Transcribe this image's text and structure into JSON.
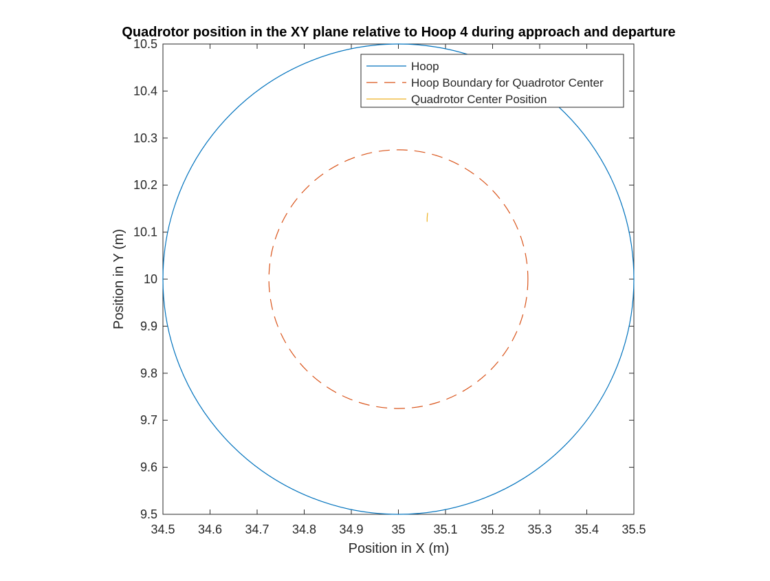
{
  "chart_data": {
    "type": "line",
    "title": "Quadrotor position in the XY plane relative to Hoop 4 during approach and departure",
    "xlabel": "Position in X (m)",
    "ylabel": "Position in Y (m)",
    "xlim": [
      34.5,
      35.5
    ],
    "ylim": [
      9.5,
      10.5
    ],
    "xticks": [
      "34.5",
      "34.6",
      "34.7",
      "34.8",
      "34.9",
      "35",
      "35.1",
      "35.2",
      "35.3",
      "35.4",
      "35.5"
    ],
    "yticks": [
      "9.5",
      "9.6",
      "9.7",
      "9.8",
      "9.9",
      "10",
      "10.1",
      "10.2",
      "10.3",
      "10.4",
      "10.5"
    ],
    "grid": false,
    "legend_position": "top-right",
    "series": [
      {
        "name": "Hoop",
        "kind": "circle",
        "center": [
          35,
          10
        ],
        "radius": 0.5,
        "color": "#0072BD",
        "dash": "solid"
      },
      {
        "name": "Hoop Boundary for Quadrotor Center",
        "kind": "circle",
        "center": [
          35,
          10
        ],
        "radius": 0.275,
        "color": "#D95319",
        "dash": "dashed"
      },
      {
        "name": "Quadrotor Center Position",
        "kind": "path",
        "x": [
          35.061,
          35.061,
          35.062
        ],
        "y": [
          10.122,
          10.13,
          10.141
        ],
        "color": "#EDB120",
        "dash": "solid"
      }
    ]
  }
}
